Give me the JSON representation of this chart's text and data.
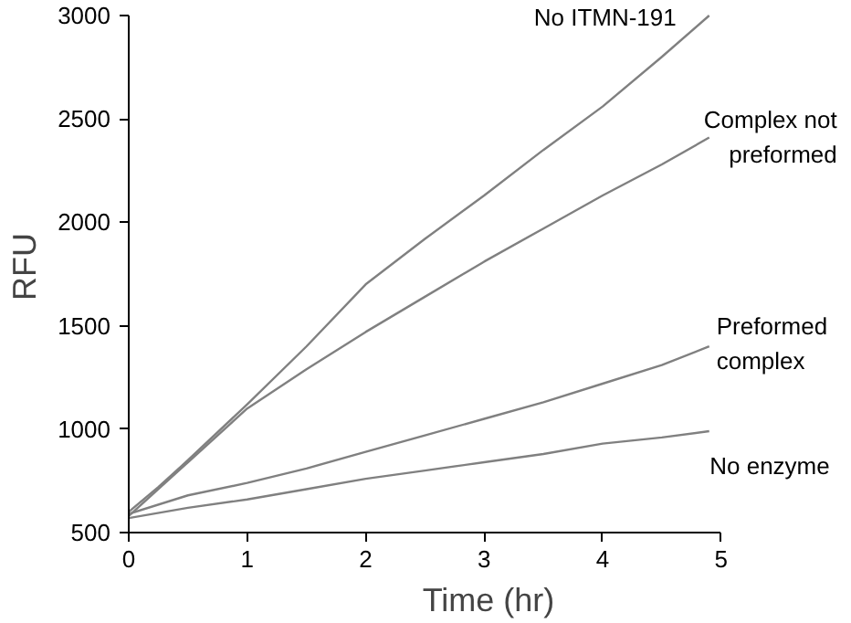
{
  "chart_data": {
    "type": "line",
    "xlabel": "Time (hr)",
    "ylabel": "RFU",
    "xlim": [
      0,
      5
    ],
    "ylim": [
      500,
      3000
    ],
    "xticks": [
      0,
      1,
      2,
      3,
      4,
      5
    ],
    "yticks": [
      500,
      1000,
      1500,
      2000,
      2500,
      3000
    ],
    "grid": false,
    "marker": "none",
    "line_style": "solid",
    "series": [
      {
        "name": "No ITMN-191",
        "color": "#808080",
        "x": [
          0,
          0.25,
          0.5,
          1,
          1.5,
          2,
          2.5,
          3,
          3.5,
          4,
          4.5,
          4.9
        ],
        "values": [
          600,
          720,
          850,
          1120,
          1400,
          1700,
          1920,
          2130,
          2350,
          2560,
          2800,
          3000
        ]
      },
      {
        "name": "Complex not\npreformed",
        "color": "#808080",
        "x": [
          0,
          0.25,
          0.5,
          1,
          1.5,
          2,
          2.5,
          3,
          3.5,
          4,
          4.5,
          4.9
        ],
        "values": [
          580,
          710,
          840,
          1100,
          1290,
          1470,
          1640,
          1810,
          1970,
          2130,
          2280,
          2410
        ]
      },
      {
        "name": "Preformed\ncomplex",
        "color": "#808080",
        "x": [
          0,
          0.5,
          1,
          1.5,
          2,
          2.5,
          3,
          3.5,
          4,
          4.5,
          4.9
        ],
        "values": [
          590,
          680,
          740,
          810,
          890,
          970,
          1050,
          1130,
          1220,
          1310,
          1400
        ]
      },
      {
        "name": "No enzyme",
        "color": "#808080",
        "x": [
          0,
          0.5,
          1,
          1.5,
          2,
          2.5,
          3,
          3.5,
          4,
          4.5,
          4.9
        ],
        "values": [
          570,
          620,
          660,
          710,
          760,
          800,
          840,
          880,
          930,
          960,
          990
        ]
      }
    ]
  }
}
